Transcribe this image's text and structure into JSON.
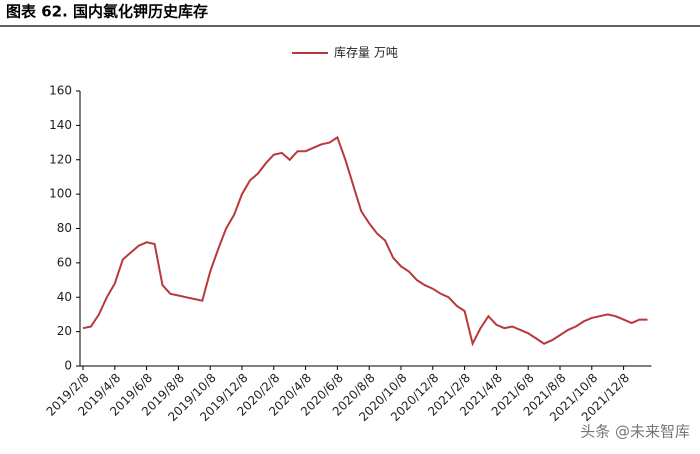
{
  "chart_data": {
    "type": "line",
    "title": "图表 62. 国内氯化钾历史库存",
    "categories": [
      "2019/2/8",
      null,
      null,
      null,
      "2019/4/8",
      null,
      null,
      null,
      "2019/6/8",
      null,
      null,
      null,
      "2019/8/8",
      null,
      null,
      null,
      "2019/10/8",
      null,
      null,
      null,
      "2019/12/8",
      null,
      null,
      null,
      "2020/2/8",
      null,
      null,
      null,
      "2020/4/8",
      null,
      null,
      null,
      "2020/6/8",
      null,
      null,
      null,
      "2020/8/8",
      null,
      null,
      null,
      "2020/10/8",
      null,
      null,
      null,
      "2020/12/8",
      null,
      null,
      null,
      "2021/2/8",
      null,
      null,
      null,
      "2021/4/8",
      null,
      null,
      null,
      "2021/6/8",
      null,
      null,
      null,
      "2021/8/8",
      null,
      null,
      null,
      "2021/10/8",
      null,
      null,
      null,
      "2021/12/8",
      null,
      null,
      null
    ],
    "series": [
      {
        "name": "库存量 万吨",
        "color": "#b8383c",
        "values": [
          22,
          23,
          30,
          40,
          48,
          62,
          66,
          70,
          72,
          71,
          47,
          42,
          41,
          40,
          39,
          38,
          55,
          68,
          80,
          88,
          100,
          108,
          112,
          118,
          123,
          124,
          120,
          125,
          125,
          127,
          129,
          130,
          133,
          120,
          105,
          90,
          83,
          77,
          73,
          63,
          58,
          55,
          50,
          47,
          45,
          42,
          40,
          35,
          32,
          13,
          22,
          29,
          24,
          22,
          23,
          21,
          19,
          16,
          13,
          15,
          18,
          21,
          23,
          26,
          28,
          29,
          30,
          29,
          27,
          25,
          27,
          27
        ]
      }
    ],
    "ylim": [
      0,
      160
    ],
    "yticks": [
      0,
      20,
      40,
      60,
      80,
      100,
      120,
      140,
      160
    ],
    "legend": "top",
    "watermark": "头条 @未来智库"
  }
}
